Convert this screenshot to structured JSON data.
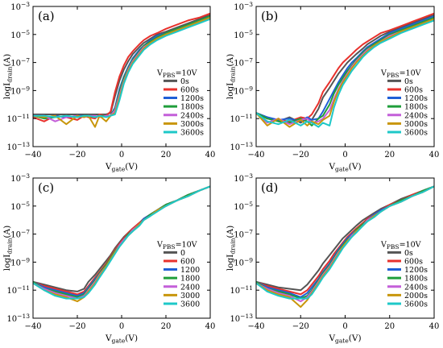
{
  "figure": {
    "sweep": [
      -40,
      -35,
      -30,
      -25,
      -20,
      -17,
      -15,
      -12,
      -10,
      -7,
      -5,
      -3,
      -1,
      1,
      3,
      5,
      8,
      10,
      13,
      16,
      20,
      25,
      30,
      35,
      40
    ]
  },
  "chart_data": [
    {
      "panel": "(a)",
      "type": "line",
      "xlabel_main": "V",
      "xlabel_sub": "gate",
      "xlabel_unit": "(V)",
      "ylabel_main": "logI",
      "ylabel_sub": "drain",
      "ylabel_unit": "(A)",
      "xlim": [
        -40,
        40
      ],
      "xticks": [
        -40,
        -20,
        0,
        20,
        40
      ],
      "xtick_labels": [
        "−40",
        "−20",
        "0",
        "20",
        "40"
      ],
      "ylim_exp": [
        -13,
        -3
      ],
      "ytick_exps": [
        -13,
        -11,
        -9,
        -7,
        -5,
        -3
      ],
      "y_scale": "log",
      "legend": {
        "title_main": "V",
        "title_sub": "PBS",
        "title_value": "=10V",
        "placement": "center-right"
      },
      "series": [
        {
          "name": "0s",
          "color": "#555555",
          "log_I": [
            -10.7,
            -10.7,
            -10.7,
            -10.7,
            -10.7,
            -10.7,
            -10.7,
            -10.7,
            -10.7,
            -10.7,
            -10.6,
            -9.4,
            -8.3,
            -7.5,
            -6.9,
            -6.4,
            -5.9,
            -5.6,
            -5.3,
            -5.0,
            -4.8,
            -4.5,
            -4.2,
            -3.9,
            -3.6
          ]
        },
        {
          "name": "600s",
          "color": "#e8312c",
          "log_I": [
            -10.9,
            -11.2,
            -10.8,
            -10.9,
            -11.1,
            -10.8,
            -10.9,
            -11.0,
            -10.7,
            -10.8,
            -10.5,
            -9.1,
            -8.0,
            -7.2,
            -6.6,
            -6.2,
            -5.7,
            -5.4,
            -5.1,
            -4.9,
            -4.6,
            -4.3,
            -4.0,
            -3.8,
            -3.5
          ]
        },
        {
          "name": "1200s",
          "color": "#1f5fd6",
          "log_I": [
            -10.8,
            -10.9,
            -10.8,
            -10.9,
            -10.8,
            -10.8,
            -10.8,
            -10.9,
            -10.8,
            -10.8,
            -10.8,
            -10.2,
            -8.9,
            -8.0,
            -7.3,
            -6.7,
            -6.1,
            -5.8,
            -5.4,
            -5.1,
            -4.9,
            -4.6,
            -4.3,
            -4.0,
            -3.7
          ]
        },
        {
          "name": "1800s",
          "color": "#1f9e3a",
          "log_I": [
            -10.8,
            -11.0,
            -10.9,
            -10.8,
            -10.9,
            -10.8,
            -10.8,
            -10.9,
            -10.8,
            -10.8,
            -10.8,
            -10.3,
            -9.1,
            -8.1,
            -7.4,
            -6.8,
            -6.2,
            -5.8,
            -5.5,
            -5.2,
            -4.9,
            -4.6,
            -4.3,
            -4.0,
            -3.7
          ]
        },
        {
          "name": "2400s",
          "color": "#c45fd9",
          "log_I": [
            -10.8,
            -10.8,
            -11.2,
            -10.9,
            -10.8,
            -10.9,
            -10.8,
            -10.8,
            -10.9,
            -10.8,
            -10.8,
            -10.4,
            -9.3,
            -8.3,
            -7.5,
            -6.9,
            -6.3,
            -5.9,
            -5.6,
            -5.3,
            -5.0,
            -4.7,
            -4.4,
            -4.1,
            -3.8
          ]
        },
        {
          "name": "3000s",
          "color": "#c8960c",
          "log_I": [
            -10.8,
            -10.9,
            -10.8,
            -11.4,
            -10.8,
            -10.9,
            -10.8,
            -11.6,
            -10.8,
            -11.2,
            -10.8,
            -10.6,
            -9.5,
            -8.4,
            -7.6,
            -7.0,
            -6.4,
            -6.0,
            -5.6,
            -5.3,
            -5.0,
            -4.7,
            -4.4,
            -4.1,
            -3.8
          ]
        },
        {
          "name": "3600s",
          "color": "#1ec8c8",
          "log_I": [
            -10.8,
            -10.8,
            -10.9,
            -10.8,
            -10.9,
            -10.8,
            -10.8,
            -10.9,
            -10.8,
            -10.9,
            -10.8,
            -10.7,
            -9.7,
            -8.5,
            -7.7,
            -7.1,
            -6.5,
            -6.1,
            -5.7,
            -5.4,
            -5.1,
            -4.8,
            -4.5,
            -4.2,
            -3.9
          ]
        }
      ]
    },
    {
      "panel": "(b)",
      "type": "line",
      "xlabel_main": "V",
      "xlabel_sub": "gate",
      "xlabel_unit": "(V)",
      "ylabel_main": "logI",
      "ylabel_sub": "drain",
      "ylabel_unit": "(A)",
      "xlim": [
        -40,
        40
      ],
      "xticks": [
        -40,
        -20,
        0,
        20,
        40
      ],
      "xtick_labels": [
        "−40",
        "−20",
        "0",
        "20",
        "40"
      ],
      "ylim_exp": [
        -13,
        -3
      ],
      "ytick_exps": [
        -13,
        -11,
        -9,
        -7,
        -5,
        -3
      ],
      "y_scale": "log",
      "legend": {
        "title_main": "V",
        "title_sub": "PBS",
        "title_value": "=10V",
        "placement": "center-right"
      },
      "series": [
        {
          "name": "0s",
          "color": "#555555",
          "log_I": [
            -10.6,
            -10.9,
            -11.2,
            -10.9,
            -11.3,
            -11.0,
            -11.1,
            -10.3,
            -9.5,
            -8.8,
            -8.3,
            -7.8,
            -7.4,
            -7.0,
            -6.7,
            -6.4,
            -6.0,
            -5.7,
            -5.4,
            -5.1,
            -4.8,
            -4.5,
            -4.2,
            -3.9,
            -3.6
          ]
        },
        {
          "name": "600s",
          "color": "#e8312c",
          "log_I": [
            -10.6,
            -11.0,
            -11.1,
            -11.2,
            -10.9,
            -11.0,
            -10.7,
            -9.9,
            -9.1,
            -8.4,
            -7.9,
            -7.4,
            -7.0,
            -6.7,
            -6.4,
            -6.1,
            -5.7,
            -5.5,
            -5.2,
            -4.9,
            -4.7,
            -4.4,
            -4.1,
            -3.8,
            -3.5
          ]
        },
        {
          "name": "1200s",
          "color": "#1f5fd6",
          "log_I": [
            -10.6,
            -10.9,
            -11.1,
            -11.0,
            -11.2,
            -10.9,
            -11.1,
            -11.0,
            -10.5,
            -9.6,
            -9.0,
            -8.4,
            -7.9,
            -7.4,
            -7.0,
            -6.7,
            -6.2,
            -5.9,
            -5.6,
            -5.3,
            -4.9,
            -4.6,
            -4.3,
            -4.0,
            -3.7
          ]
        },
        {
          "name": "1800s",
          "color": "#1f9e3a",
          "log_I": [
            -10.6,
            -11.0,
            -11.2,
            -11.3,
            -11.0,
            -11.2,
            -11.5,
            -11.0,
            -10.8,
            -10.0,
            -9.2,
            -8.6,
            -8.1,
            -7.6,
            -7.2,
            -6.8,
            -6.3,
            -6.0,
            -5.7,
            -5.4,
            -5.0,
            -4.7,
            -4.4,
            -4.1,
            -3.8
          ]
        },
        {
          "name": "2400s",
          "color": "#c45fd9",
          "log_I": [
            -10.6,
            -11.3,
            -11.0,
            -11.4,
            -11.1,
            -11.0,
            -11.3,
            -11.2,
            -11.0,
            -10.4,
            -9.6,
            -8.9,
            -8.3,
            -7.8,
            -7.3,
            -6.9,
            -6.4,
            -6.1,
            -5.8,
            -5.5,
            -5.1,
            -4.8,
            -4.5,
            -4.2,
            -3.9
          ]
        },
        {
          "name": "3000s",
          "color": "#c8960c",
          "log_I": [
            -10.6,
            -11.5,
            -11.0,
            -11.6,
            -11.1,
            -11.5,
            -11.2,
            -11.4,
            -11.1,
            -10.8,
            -9.8,
            -9.0,
            -8.4,
            -7.9,
            -7.4,
            -7.0,
            -6.5,
            -6.2,
            -5.8,
            -5.5,
            -5.2,
            -4.8,
            -4.5,
            -4.2,
            -3.9
          ]
        },
        {
          "name": "3600s",
          "color": "#1ec8c8",
          "log_I": [
            -10.6,
            -11.2,
            -11.4,
            -11.1,
            -11.5,
            -11.2,
            -11.3,
            -11.6,
            -11.3,
            -11.5,
            -10.2,
            -9.3,
            -8.6,
            -8.1,
            -7.6,
            -7.2,
            -6.6,
            -6.3,
            -5.9,
            -5.6,
            -5.3,
            -4.9,
            -4.6,
            -4.3,
            -4.0
          ]
        }
      ]
    },
    {
      "panel": "(c)",
      "type": "line",
      "xlabel_main": "V",
      "xlabel_sub": "gate",
      "xlabel_unit": "(V)",
      "ylabel_main": "logI",
      "ylabel_sub": "drain",
      "ylabel_unit": "(A)",
      "xlim": [
        -40,
        40
      ],
      "xticks": [
        -40,
        -20,
        0,
        20,
        40
      ],
      "xtick_labels": [
        "−40",
        "−20",
        "0",
        "20",
        "40"
      ],
      "ylim_exp": [
        -13,
        -3
      ],
      "ytick_exps": [
        -13,
        -11,
        -9,
        -7,
        -5,
        -3
      ],
      "y_scale": "log",
      "legend": {
        "title_main": "V",
        "title_sub": "PBS",
        "title_value": "=10V",
        "placement": "center-right"
      },
      "series": [
        {
          "name": "0",
          "color": "#555555",
          "log_I": [
            -10.4,
            -10.6,
            -10.8,
            -11.0,
            -11.1,
            -10.9,
            -10.4,
            -9.9,
            -9.5,
            -8.9,
            -8.5,
            -8.0,
            -7.6,
            -7.2,
            -6.9,
            -6.6,
            -6.2,
            -5.9,
            -5.6,
            -5.3,
            -4.9,
            -4.6,
            -4.2,
            -3.9,
            -3.6
          ]
        },
        {
          "name": "600",
          "color": "#e8312c",
          "log_I": [
            -10.4,
            -10.7,
            -10.9,
            -11.1,
            -11.3,
            -11.1,
            -10.7,
            -10.1,
            -9.7,
            -9.1,
            -8.6,
            -8.1,
            -7.7,
            -7.3,
            -6.9,
            -6.6,
            -6.2,
            -5.9,
            -5.6,
            -5.3,
            -4.9,
            -4.6,
            -4.2,
            -3.9,
            -3.6
          ]
        },
        {
          "name": "1200",
          "color": "#1f5fd6",
          "log_I": [
            -10.4,
            -10.8,
            -11.0,
            -11.2,
            -11.4,
            -11.2,
            -10.8,
            -10.2,
            -9.8,
            -9.2,
            -8.7,
            -8.2,
            -7.8,
            -7.4,
            -7.0,
            -6.7,
            -6.3,
            -5.9,
            -5.6,
            -5.3,
            -4.9,
            -4.6,
            -4.2,
            -3.9,
            -3.6
          ]
        },
        {
          "name": "1800",
          "color": "#1f9e3a",
          "log_I": [
            -10.4,
            -10.9,
            -11.1,
            -11.3,
            -11.5,
            -11.3,
            -10.9,
            -10.3,
            -9.8,
            -9.2,
            -8.7,
            -8.2,
            -7.8,
            -7.4,
            -7.0,
            -6.7,
            -6.3,
            -6.0,
            -5.6,
            -5.3,
            -4.9,
            -4.6,
            -4.2,
            -3.9,
            -3.6
          ]
        },
        {
          "name": "2400",
          "color": "#c45fd9",
          "log_I": [
            -10.5,
            -10.9,
            -11.2,
            -11.4,
            -11.6,
            -11.4,
            -11.0,
            -10.4,
            -9.9,
            -9.3,
            -8.8,
            -8.3,
            -7.8,
            -7.4,
            -7.1,
            -6.7,
            -6.3,
            -6.0,
            -5.7,
            -5.3,
            -5.0,
            -4.6,
            -4.3,
            -3.9,
            -3.6
          ]
        },
        {
          "name": "3000",
          "color": "#c8960c",
          "log_I": [
            -10.5,
            -11.0,
            -11.3,
            -11.5,
            -11.8,
            -11.5,
            -11.1,
            -10.5,
            -10.0,
            -9.3,
            -8.8,
            -8.3,
            -7.9,
            -7.5,
            -7.1,
            -6.8,
            -6.3,
            -6.0,
            -5.7,
            -5.3,
            -5.0,
            -4.6,
            -4.3,
            -3.9,
            -3.6
          ]
        },
        {
          "name": "3600",
          "color": "#1ec8c8",
          "log_I": [
            -10.5,
            -11.0,
            -11.4,
            -11.6,
            -11.6,
            -11.5,
            -11.2,
            -10.6,
            -10.1,
            -9.4,
            -8.9,
            -8.4,
            -7.9,
            -7.5,
            -7.1,
            -6.8,
            -6.4,
            -6.0,
            -5.7,
            -5.4,
            -5.0,
            -4.6,
            -4.3,
            -3.9,
            -3.6
          ]
        }
      ]
    },
    {
      "panel": "(d)",
      "type": "line",
      "xlabel_main": "V",
      "xlabel_sub": "gate",
      "xlabel_unit": "(V)",
      "ylabel_main": "logI",
      "ylabel_sub": "drain",
      "ylabel_unit": "(A)",
      "xlim": [
        -40,
        40
      ],
      "xticks": [
        -40,
        -20,
        0,
        20,
        40
      ],
      "xtick_labels": [
        "−40",
        "−20",
        "0",
        "20",
        "40"
      ],
      "ylim_exp": [
        -13,
        -3
      ],
      "ytick_exps": [
        -13,
        -11,
        -9,
        -7,
        -5,
        -3
      ],
      "y_scale": "log",
      "legend": {
        "title_main": "V",
        "title_sub": "PBS",
        "title_value": "=10V",
        "placement": "center-right"
      },
      "series": [
        {
          "name": "0s",
          "color": "#555555",
          "log_I": [
            -10.4,
            -10.6,
            -10.8,
            -10.9,
            -11.0,
            -10.6,
            -10.2,
            -9.6,
            -9.1,
            -8.5,
            -8.1,
            -7.7,
            -7.3,
            -7.0,
            -6.7,
            -6.4,
            -6.0,
            -5.8,
            -5.5,
            -5.2,
            -4.9,
            -4.5,
            -4.2,
            -3.9,
            -3.6
          ]
        },
        {
          "name": "600s",
          "color": "#e8312c",
          "log_I": [
            -10.4,
            -10.7,
            -10.9,
            -11.1,
            -11.3,
            -11.0,
            -10.6,
            -10.0,
            -9.5,
            -8.9,
            -8.4,
            -8.0,
            -7.6,
            -7.2,
            -6.9,
            -6.6,
            -6.2,
            -5.9,
            -5.6,
            -5.3,
            -4.9,
            -4.6,
            -4.2,
            -3.9,
            -3.6
          ]
        },
        {
          "name": "1200s",
          "color": "#1f5fd6",
          "log_I": [
            -10.4,
            -10.8,
            -11.0,
            -11.2,
            -11.5,
            -11.2,
            -10.8,
            -10.2,
            -9.7,
            -9.1,
            -8.6,
            -8.1,
            -7.7,
            -7.3,
            -7.0,
            -6.7,
            -6.3,
            -6.0,
            -5.6,
            -5.3,
            -5.0,
            -4.6,
            -4.3,
            -3.9,
            -3.6
          ]
        },
        {
          "name": "1800s",
          "color": "#1f9e3a",
          "log_I": [
            -10.4,
            -10.9,
            -11.1,
            -11.3,
            -11.6,
            -11.4,
            -11.0,
            -10.3,
            -9.8,
            -9.2,
            -8.7,
            -8.2,
            -7.8,
            -7.4,
            -7.1,
            -6.7,
            -6.3,
            -6.0,
            -5.7,
            -5.4,
            -5.0,
            -4.6,
            -4.3,
            -3.9,
            -3.6
          ]
        },
        {
          "name": "2400s",
          "color": "#c45fd9",
          "log_I": [
            -10.5,
            -10.9,
            -11.2,
            -11.4,
            -11.8,
            -11.5,
            -11.1,
            -10.4,
            -9.9,
            -9.3,
            -8.8,
            -8.3,
            -7.9,
            -7.5,
            -7.1,
            -6.8,
            -6.4,
            -6.0,
            -5.7,
            -5.4,
            -5.0,
            -4.7,
            -4.3,
            -4.0,
            -3.6
          ]
        },
        {
          "name": "2000s",
          "color": "#c8960c",
          "log_I": [
            -10.5,
            -11.0,
            -11.3,
            -11.5,
            -12.2,
            -11.7,
            -11.2,
            -10.5,
            -10.0,
            -9.4,
            -8.9,
            -8.4,
            -7.9,
            -7.5,
            -7.2,
            -6.8,
            -6.4,
            -6.1,
            -5.7,
            -5.4,
            -5.0,
            -4.7,
            -4.3,
            -4.0,
            -3.6
          ]
        },
        {
          "name": "3600s",
          "color": "#1ec8c8",
          "log_I": [
            -10.5,
            -11.1,
            -11.4,
            -11.6,
            -11.6,
            -11.6,
            -11.3,
            -10.6,
            -10.1,
            -9.5,
            -9.0,
            -8.5,
            -8.0,
            -7.6,
            -7.2,
            -6.9,
            -6.4,
            -6.1,
            -5.8,
            -5.4,
            -5.0,
            -4.7,
            -4.3,
            -4.0,
            -3.6
          ]
        }
      ]
    }
  ]
}
